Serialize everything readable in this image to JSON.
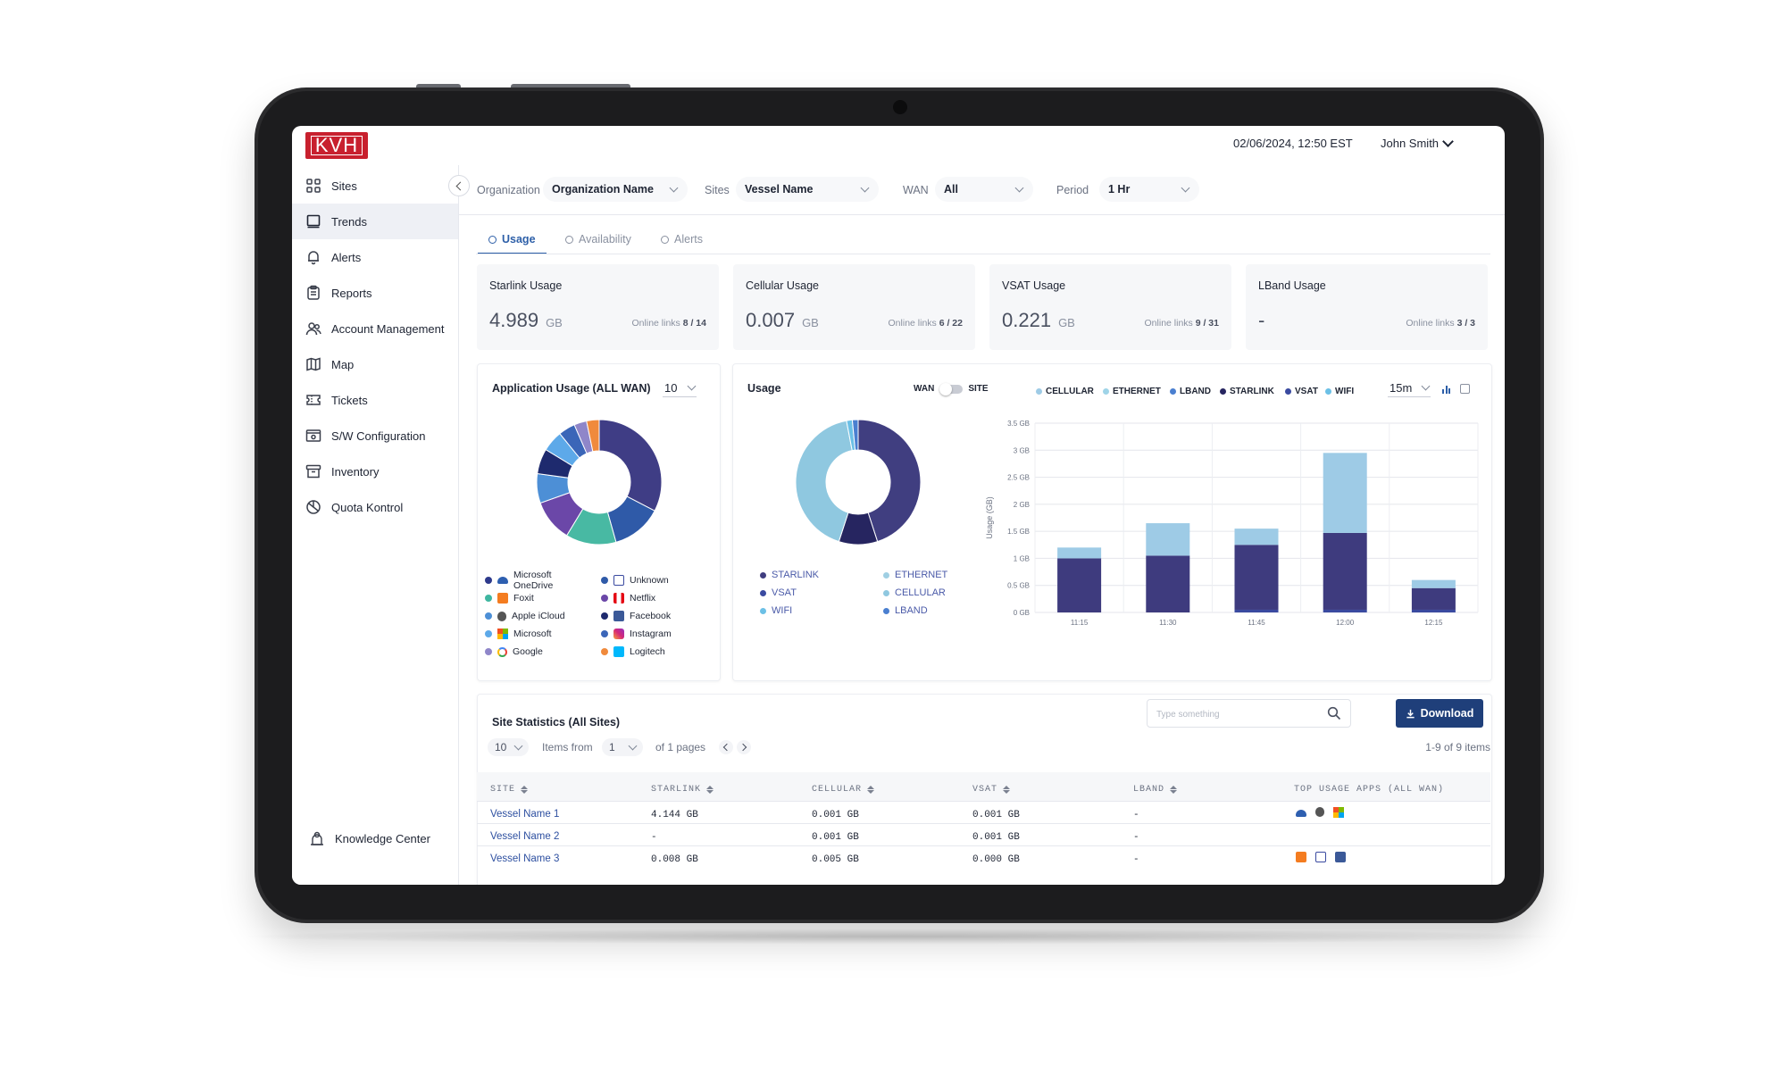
{
  "header": {
    "logo_text": "KVH",
    "datetime": "02/06/2024, 12:50 EST",
    "user_name": "John Smith"
  },
  "sidebar": {
    "items": [
      {
        "label": "Sites",
        "icon": "grid-icon"
      },
      {
        "label": "Trends",
        "icon": "monitor-icon"
      },
      {
        "label": "Alerts",
        "icon": "bell-icon"
      },
      {
        "label": "Reports",
        "icon": "clipboard-icon"
      },
      {
        "label": "Account Management",
        "icon": "users-icon"
      },
      {
        "label": "Map",
        "icon": "map-icon"
      },
      {
        "label": "Tickets",
        "icon": "ticket-icon"
      },
      {
        "label": "S/W Configuration",
        "icon": "config-icon"
      },
      {
        "label": "Inventory",
        "icon": "archive-icon"
      },
      {
        "label": "Quota Kontrol",
        "icon": "gauge-icon"
      }
    ],
    "active": "Trends",
    "footer_label": "Knowledge Center"
  },
  "filters": {
    "organization_label": "Organization",
    "organization_value": "Organization Name",
    "sites_label": "Sites",
    "sites_value": "Vessel Name",
    "wan_label": "WAN",
    "wan_value": "All",
    "period_label": "Period",
    "period_value": "1 Hr"
  },
  "tabs": [
    {
      "label": "Usage",
      "active": true
    },
    {
      "label": "Availability",
      "active": false
    },
    {
      "label": "Alerts",
      "active": false
    }
  ],
  "cards": [
    {
      "title": "Starlink Usage",
      "value": "4.989",
      "unit": "GB",
      "online_label": "Online links",
      "online": "8 / 14"
    },
    {
      "title": "Cellular Usage",
      "value": "0.007",
      "unit": "GB",
      "online_label": "Online links",
      "online": "6 / 22"
    },
    {
      "title": "VSAT Usage",
      "value": "0.221",
      "unit": "GB",
      "online_label": "Online links",
      "online": "9 / 31"
    },
    {
      "title": "LBand Usage",
      "value": "-",
      "unit": "",
      "online_label": "Online links",
      "online": "3 / 3"
    }
  ],
  "app_usage": {
    "title": "Application Usage (ALL WAN)",
    "count_value": "10",
    "legend": [
      {
        "label": "Microsoft OneDrive",
        "color": "#2e3a8c",
        "icon": "onedrive-icon"
      },
      {
        "label": "Unknown",
        "color": "#2f5aa8",
        "icon": "unknown-icon"
      },
      {
        "label": "Foxit",
        "color": "#3fb6a0",
        "icon": "foxit-icon"
      },
      {
        "label": "Netflix",
        "color": "#6b47a8",
        "icon": "netflix-icon"
      },
      {
        "label": "Apple iCloud",
        "color": "#4d8fd6",
        "icon": "apple-icon"
      },
      {
        "label": "Facebook",
        "color": "#1e2a6e",
        "icon": "facebook-icon"
      },
      {
        "label": "Microsoft",
        "color": "#5da9e9",
        "icon": "microsoft-icon"
      },
      {
        "label": "Instagram",
        "color": "#3b66b8",
        "icon": "instagram-icon"
      },
      {
        "label": "Google",
        "color": "#8f86c9",
        "icon": "google-icon"
      },
      {
        "label": "Logitech",
        "color": "#f08a3c",
        "icon": "logitech-icon"
      }
    ]
  },
  "usage_panel": {
    "title": "Usage",
    "toggle_left": "WAN",
    "toggle_right": "SITE",
    "interval_value": "15m",
    "donut_legend": [
      {
        "label": "STARLINK",
        "color": "#403e80"
      },
      {
        "label": "ETHERNET",
        "color": "#9fcfe3"
      },
      {
        "label": "VSAT",
        "color": "#3a4aa0"
      },
      {
        "label": "CELLULAR",
        "color": "#8fc8e0"
      },
      {
        "label": "WIFI",
        "color": "#6cc0e6"
      },
      {
        "label": "LBAND",
        "color": "#4a7fd0"
      }
    ],
    "wan_legend": [
      {
        "label": "CELLULAR",
        "color": "#9ecbe6"
      },
      {
        "label": "ETHERNET",
        "color": "#9fd4e8"
      },
      {
        "label": "LBAND",
        "color": "#4a7fd0"
      },
      {
        "label": "STARLINK",
        "color": "#262560"
      },
      {
        "label": "VSAT",
        "color": "#3a4aa0"
      },
      {
        "label": "WIFI",
        "color": "#6cc0e6"
      }
    ]
  },
  "chart_data": [
    {
      "type": "pie",
      "title": "Application Usage (ALL WAN)",
      "labels": [
        "Microsoft OneDrive",
        "Unknown",
        "Foxit",
        "Netflix",
        "Apple iCloud",
        "Facebook",
        "Microsoft",
        "Instagram",
        "Google",
        "Logitech"
      ],
      "values": [
        30,
        12,
        12,
        10,
        7,
        6,
        5,
        4,
        3,
        3
      ],
      "colors": [
        "#3f3d85",
        "#2f5aa8",
        "#48b9a3",
        "#6b47a8",
        "#4d8fd6",
        "#1e2a6e",
        "#5da9e9",
        "#3b66b8",
        "#8f86c9",
        "#f08a3c"
      ]
    },
    {
      "type": "pie",
      "title": "Usage",
      "labels": [
        "STARLINK",
        "VSAT",
        "ETHERNET",
        "CELLULAR",
        "WIFI",
        "LBAND"
      ],
      "values": [
        45,
        10,
        0,
        42,
        1.5,
        1.5
      ],
      "colors": [
        "#403e80",
        "#262560",
        "#9fcfe3",
        "#8fc8e0",
        "#6cc0e6",
        "#4a7fd0"
      ]
    },
    {
      "type": "bar",
      "stacked": true,
      "categories": [
        "11:15",
        "11:30",
        "11:45",
        "12:00",
        "12:15"
      ],
      "ylabel": "Usage (GB)",
      "ylim": [
        0,
        3.5
      ],
      "yticks": [
        "0 GB",
        "0.5 GB",
        "1 GB",
        "1.5 GB",
        "2 GB",
        "2.5 GB",
        "3 GB",
        "3.5 GB"
      ],
      "grid": true,
      "series": [
        {
          "name": "VSAT",
          "color": "#3a4aa0",
          "values": [
            0,
            0,
            0.05,
            0.05,
            0.05
          ]
        },
        {
          "name": "STARLINK",
          "color": "#3e3b7e",
          "values": [
            1.0,
            1.05,
            1.2,
            1.42,
            0.4
          ]
        },
        {
          "name": "CELLULAR",
          "color": "#9ecbe6",
          "values": [
            0.2,
            0.6,
            0.3,
            1.48,
            0.15
          ]
        }
      ]
    }
  ],
  "site_stats": {
    "title": "Site Statistics (All Sites)",
    "search_placeholder": "Type something",
    "download_label": "Download",
    "page_size": "10",
    "items_from_label": "Items from",
    "page_value": "1",
    "of_pages_label": "of 1 pages",
    "items_summary": "1-9 of 9 items",
    "columns": [
      "SITE",
      "STARLINK",
      "CELLULAR",
      "VSAT",
      "LBAND",
      "TOP USAGE APPS (ALL WAN)"
    ],
    "rows": [
      {
        "site": "Vessel Name 1",
        "starlink": "4.144 GB",
        "cellular": "0.001 GB",
        "vsat": "0.001 GB",
        "lband": "-",
        "apps": [
          "onedrive-icon",
          "apple-icon",
          "microsoft-icon"
        ]
      },
      {
        "site": "Vessel Name 2",
        "starlink": "-",
        "cellular": "0.001 GB",
        "vsat": "0.001 GB",
        "lband": "-",
        "apps": []
      },
      {
        "site": "Vessel Name 3",
        "starlink": "0.008 GB",
        "cellular": "0.005 GB",
        "vsat": "0.000 GB",
        "lband": "-",
        "apps": [
          "foxit-icon",
          "unknown-icon",
          "facebook-icon"
        ]
      }
    ]
  }
}
